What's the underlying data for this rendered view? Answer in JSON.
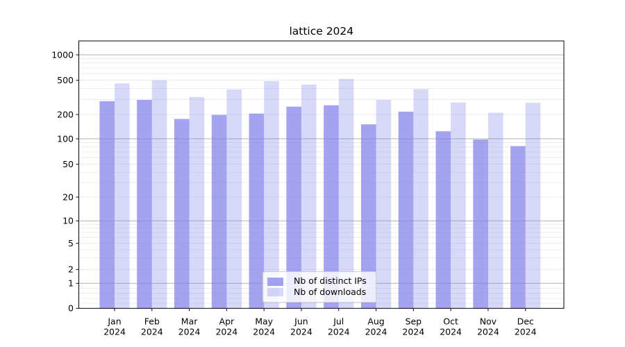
{
  "chart_data": {
    "type": "bar",
    "title": "lattice 2024",
    "categories": [
      "Jan",
      "Feb",
      "Mar",
      "Apr",
      "May",
      "Jun",
      "Jul",
      "Aug",
      "Sep",
      "Oct",
      "Nov",
      "Dec"
    ],
    "category_year": "2024",
    "series": [
      {
        "name": "Nb of distinct IPs",
        "color": "#7f7fe9",
        "alpha": 0.72,
        "values": [
          286,
          296,
          176,
          198,
          205,
          247,
          256,
          151,
          216,
          124,
          98,
          82
        ]
      },
      {
        "name": "Nb of downloads",
        "color": "#7f7fe9",
        "alpha": 0.3,
        "values": [
          460,
          501,
          320,
          390,
          489,
          446,
          520,
          295,
          394,
          276,
          210,
          273
        ]
      }
    ],
    "y_axis": {
      "scale": "symlog",
      "tick_values": [
        0,
        1,
        2,
        5,
        10,
        20,
        50,
        100,
        200,
        500,
        1000
      ],
      "tick_labels": [
        "0",
        "1",
        "2",
        "5",
        "10",
        "20",
        "50",
        "100",
        "200",
        "500",
        "1000"
      ],
      "major_gridline_values": [
        1,
        10,
        100,
        1000
      ],
      "minor_gridline_values": [
        0.2,
        0.4,
        0.6,
        0.8,
        2,
        3,
        4,
        5,
        6,
        7,
        8,
        9,
        20,
        30,
        40,
        50,
        60,
        70,
        80,
        90,
        200,
        300,
        400,
        500,
        600,
        700,
        800,
        900
      ]
    },
    "legend": {
      "position": "lower center",
      "entries": [
        "Nb of distinct IPs",
        "Nb of downloads"
      ]
    },
    "grid": true,
    "colors": {
      "bar_base": "#7f7fe9",
      "major_grid": "#b0b0b0",
      "minor_grid": "#e8e8e8",
      "axis": "#000000",
      "background": "#ffffff"
    }
  }
}
